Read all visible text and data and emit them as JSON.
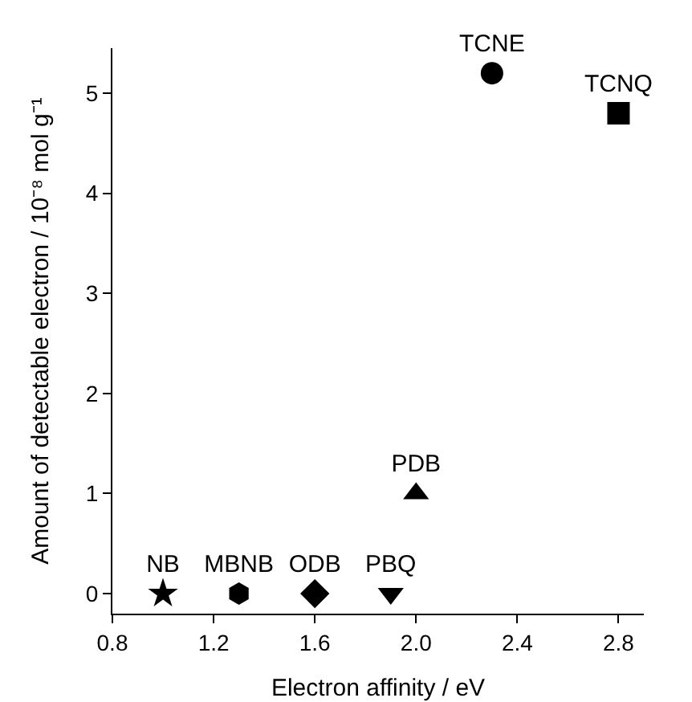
{
  "chart_data": {
    "type": "scatter",
    "xlabel": "Electron affinity / eV",
    "ylabel": "Amount of detectable electron / 10⁻⁸ mol g⁻¹",
    "xlim": [
      0.8,
      2.9
    ],
    "xticks": [
      0.8,
      1.2,
      1.6,
      {
        "value": 2.0,
        "label": "2.0"
      },
      2.4,
      2.8
    ],
    "ylim": [
      -0.2,
      5.45
    ],
    "yticks": [
      0,
      1,
      2,
      3,
      4,
      5
    ],
    "grid": false,
    "legend": false,
    "series": [
      {
        "name": "NB",
        "color": "#000000",
        "marker": "star",
        "x": [
          1.0
        ],
        "values": [
          0
        ]
      },
      {
        "name": "MBNB",
        "color": "#000000",
        "x": [
          1.3
        ],
        "values": [
          0
        ]
      },
      {
        "name": "ODB",
        "color": "#000000",
        "marker": "diamond",
        "x": [
          1.6
        ],
        "values": [
          0
        ]
      },
      {
        "name": "PBQ",
        "color": "#000000",
        "marker": "triangle-down",
        "x": [
          1.9
        ],
        "values": [
          0
        ]
      },
      {
        "name": "PDB",
        "color": "#000000",
        "marker": "triangle",
        "x": [
          2.0
        ],
        "values": [
          1.0
        ]
      },
      {
        "name": "TCNE",
        "color": "#000000",
        "marker": "circle",
        "x": [
          2.3
        ],
        "values": [
          5.2
        ]
      },
      {
        "name": "TCNQ",
        "color": "#000000",
        "marker": "square",
        "x": [
          2.8
        ],
        "values": [
          4.8
        ]
      }
    ]
  }
}
